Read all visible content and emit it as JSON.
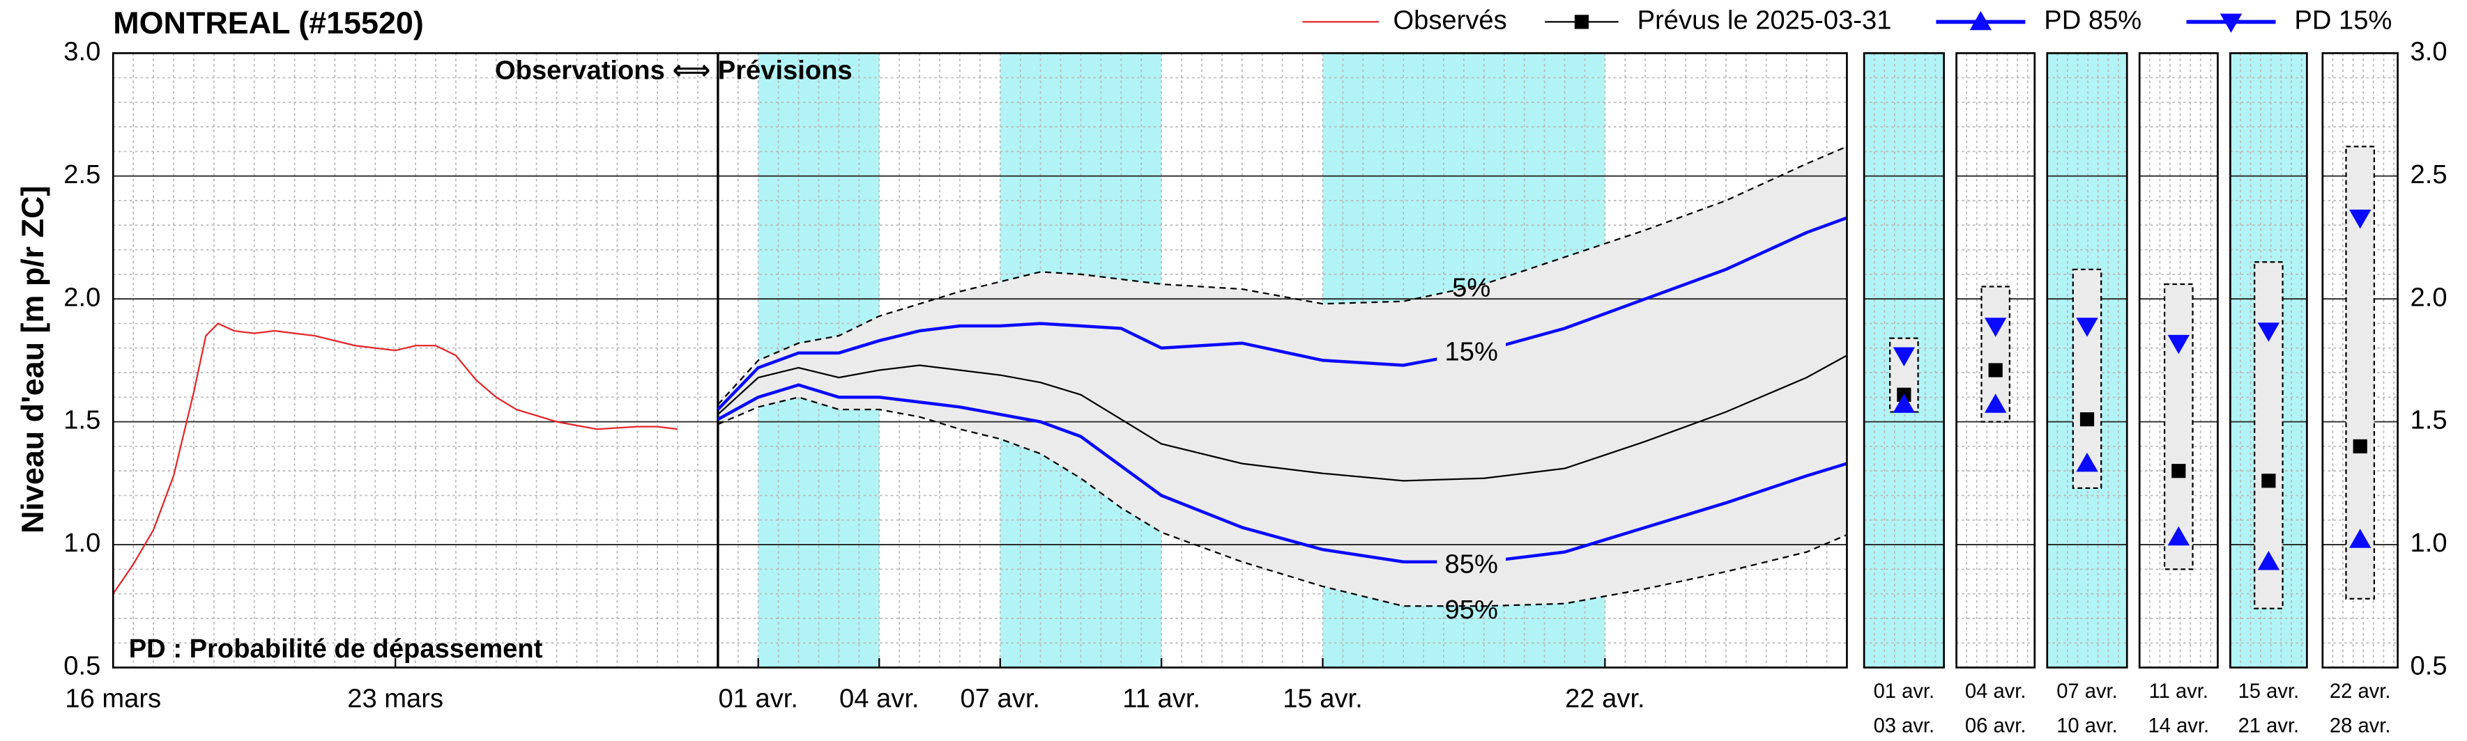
{
  "chart_data": [
    {
      "type": "line",
      "title": "MONTREAL (#15520)",
      "ylabel": "Niveau d'eau [m p/r ZC]",
      "annotations": [
        "Observations ⟺ Prévisions",
        "PD : Probabilité de dépassement"
      ],
      "xlim": [
        0,
        43
      ],
      "ylim": [
        0.5,
        3.0
      ],
      "yticks": [
        0.5,
        {
          "value": 1.0,
          "label": "1.0"
        },
        1.5,
        {
          "value": 2.0,
          "label": "2.0"
        },
        2.5,
        {
          "value": 3.0,
          "label": "3.0"
        }
      ],
      "xticks": [
        {
          "value": 0,
          "label": "16 mars"
        },
        {
          "value": 7,
          "label": "23 mars"
        },
        {
          "value": 16,
          "label": "01 avr."
        },
        {
          "value": 19,
          "label": "04 avr."
        },
        {
          "value": 22,
          "label": "07 avr."
        },
        {
          "value": 26,
          "label": "11 avr."
        },
        {
          "value": 30,
          "label": "15 avr."
        },
        {
          "value": 37,
          "label": "22 avr."
        }
      ],
      "split": 15,
      "shaded": [
        [
          16,
          19
        ],
        [
          22,
          26
        ],
        [
          30,
          37
        ]
      ],
      "shade_color": "#b2f4f6",
      "envelope_color": "#ebebeb",
      "grid": true,
      "legend": "top-right",
      "series": [
        {
          "name": "Observés",
          "color": "#e3262b",
          "marker": "none",
          "style": "solid",
          "x": [
            0,
            0.5,
            1,
            1.5,
            2,
            2.3,
            2.6,
            3,
            3.5,
            4,
            4.5,
            5,
            6,
            7,
            7.5,
            8,
            8.5,
            9,
            9.5,
            10,
            11,
            12,
            13,
            13.5,
            14
          ],
          "values": [
            0.8,
            0.92,
            1.06,
            1.28,
            1.62,
            1.85,
            1.9,
            1.87,
            1.86,
            1.87,
            1.86,
            1.85,
            1.81,
            1.79,
            1.81,
            1.81,
            1.77,
            1.67,
            1.6,
            1.55,
            1.5,
            1.47,
            1.48,
            1.48,
            1.47
          ]
        },
        {
          "name": "Prévus le 2025-03-31",
          "color": "#000000",
          "marker": "square",
          "style": "solid",
          "x": [
            15,
            16,
            17,
            18,
            19,
            20,
            21,
            22,
            23,
            24,
            25,
            26,
            28,
            30,
            32,
            34,
            36,
            38,
            40,
            42,
            43
          ],
          "values": [
            1.53,
            1.68,
            1.72,
            1.68,
            1.71,
            1.73,
            1.71,
            1.69,
            1.66,
            1.61,
            1.51,
            1.41,
            1.33,
            1.29,
            1.26,
            1.27,
            1.31,
            1.42,
            1.54,
            1.68,
            1.77
          ]
        },
        {
          "name": "PD 85%",
          "label": "85%",
          "color": "#0a0aff",
          "marker": "triangle-up",
          "style": "solid",
          "x": [
            15,
            16,
            17,
            18,
            19,
            20,
            21,
            22,
            23,
            24,
            25,
            26,
            28,
            30,
            32,
            34,
            36,
            38,
            40,
            42,
            43
          ],
          "values": [
            1.51,
            1.6,
            1.65,
            1.6,
            1.6,
            1.58,
            1.56,
            1.53,
            1.5,
            1.44,
            1.32,
            1.2,
            1.07,
            0.98,
            0.93,
            0.93,
            0.97,
            1.07,
            1.17,
            1.28,
            1.33
          ]
        },
        {
          "name": "PD 15%",
          "label": "15%",
          "color": "#0a0aff",
          "marker": "triangle-down",
          "style": "solid",
          "x": [
            15,
            16,
            17,
            18,
            19,
            20,
            21,
            22,
            23,
            24,
            25,
            26,
            28,
            30,
            32,
            34,
            36,
            38,
            40,
            42,
            43
          ],
          "values": [
            1.55,
            1.72,
            1.78,
            1.78,
            1.83,
            1.87,
            1.89,
            1.89,
            1.9,
            1.89,
            1.88,
            1.8,
            1.82,
            1.75,
            1.73,
            1.79,
            1.88,
            2.0,
            2.12,
            2.27,
            2.33
          ]
        },
        {
          "label": "5%",
          "color": "#000000",
          "style": "dashed",
          "envelope": "high",
          "x": [
            15,
            16,
            17,
            18,
            19,
            20,
            21,
            22,
            23,
            24,
            25,
            26,
            28,
            30,
            32,
            34,
            36,
            38,
            40,
            42,
            43
          ],
          "values": [
            1.57,
            1.75,
            1.82,
            1.85,
            1.93,
            1.98,
            2.03,
            2.07,
            2.11,
            2.1,
            2.08,
            2.06,
            2.04,
            1.98,
            1.99,
            2.06,
            2.17,
            2.28,
            2.4,
            2.55,
            2.62
          ]
        },
        {
          "label": "95%",
          "color": "#000000",
          "style": "dashed",
          "envelope": "low",
          "x": [
            15,
            16,
            17,
            18,
            19,
            20,
            21,
            22,
            23,
            24,
            25,
            26,
            28,
            30,
            32,
            34,
            36,
            38,
            40,
            42,
            43
          ],
          "values": [
            1.49,
            1.56,
            1.6,
            1.55,
            1.55,
            1.52,
            1.47,
            1.43,
            1.37,
            1.27,
            1.15,
            1.05,
            0.93,
            0.83,
            0.75,
            0.75,
            0.76,
            0.82,
            0.89,
            0.97,
            1.04
          ]
        }
      ]
    },
    {
      "type": "range",
      "ylim": [
        0.5,
        3.0
      ],
      "yticks": [
        0.5,
        {
          "value": 1.0,
          "label": "1.0"
        },
        1.5,
        {
          "value": 2.0,
          "label": "2.0"
        },
        2.5,
        {
          "value": 3.0,
          "label": "3.0"
        }
      ],
      "categories": [
        [
          "01 avr.",
          "03 avr."
        ],
        [
          "04 avr.",
          "06 avr."
        ],
        [
          "07 avr.",
          "10 avr."
        ],
        [
          "11 avr.",
          "14 avr."
        ],
        [
          "15 avr.",
          "21 avr."
        ],
        [
          "22 avr.",
          "28 avr."
        ]
      ],
      "shaded": [
        true,
        false,
        true,
        false,
        true,
        false
      ],
      "shade_color": "#b2f4f6",
      "envelope_color": "#ebebeb",
      "high": [
        1.84,
        2.05,
        2.12,
        2.06,
        2.15,
        2.62
      ],
      "low": [
        1.54,
        1.5,
        1.23,
        0.9,
        0.74,
        0.78
      ],
      "series": [
        {
          "color": "#0a0aff",
          "marker": "triangle-down",
          "values": [
            1.77,
            1.89,
            1.89,
            1.82,
            1.87,
            2.33
          ]
        },
        {
          "color": "#000000",
          "marker": "square",
          "values": [
            1.61,
            1.71,
            1.51,
            1.3,
            1.26,
            1.4
          ]
        },
        {
          "color": "#0a0aff",
          "marker": "triangle-up",
          "values": [
            1.57,
            1.57,
            1.33,
            1.03,
            0.93,
            1.02
          ]
        }
      ]
    }
  ]
}
